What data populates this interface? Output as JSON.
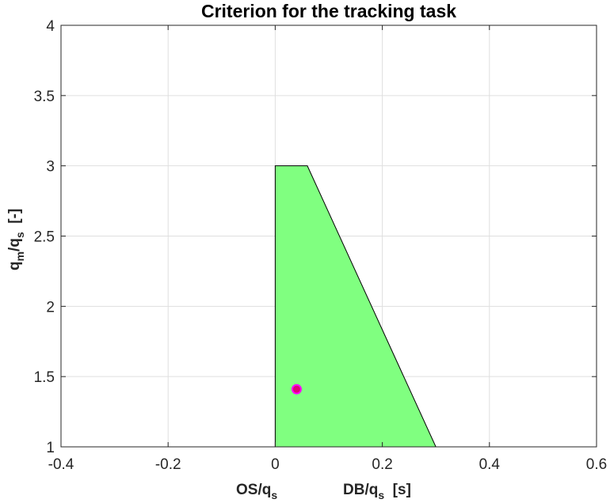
{
  "chart_data": {
    "type": "scatter",
    "title": "Criterion for the tracking task",
    "xlabel": {
      "left": {
        "main": "OS/q",
        "sub": "s"
      },
      "right": {
        "main": "DB/q",
        "sub": "s",
        "unit": "  [s]"
      }
    },
    "ylabel": {
      "q": "q",
      "m": "m",
      "slash": "/q",
      "s": "s",
      "unit": "  [-]"
    },
    "xlim": [
      -0.4,
      0.6
    ],
    "ylim": [
      1,
      4
    ],
    "xticks": [
      -0.4,
      -0.2,
      0,
      0.2,
      0.4,
      0.6
    ],
    "xtick_labels": [
      "-0.4",
      "-0.2",
      "0",
      "0.2",
      "0.4",
      "0.6"
    ],
    "yticks": [
      1,
      1.5,
      2,
      2.5,
      3,
      3.5,
      4
    ],
    "ytick_labels": [
      "1",
      "1.5",
      "2",
      "2.5",
      "3",
      "3.5",
      "4"
    ],
    "grid": true,
    "region": {
      "color": "#80ff80",
      "points": [
        [
          0,
          1
        ],
        [
          0,
          3
        ],
        [
          0.06,
          3
        ],
        [
          0.3,
          1
        ]
      ]
    },
    "points": [
      {
        "x": 0.04,
        "y": 1.41,
        "fill": "#e0007a",
        "edge": "#ff00ff"
      }
    ]
  }
}
